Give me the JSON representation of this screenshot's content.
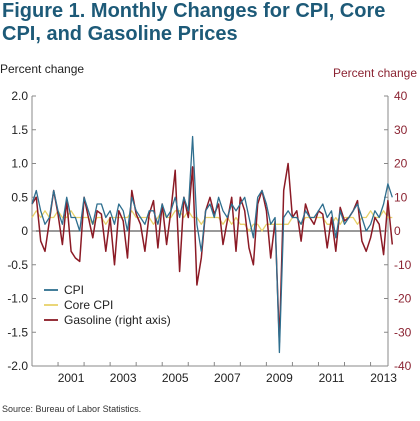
{
  "colors": {
    "cpi": "#2f6f8f",
    "core": "#e8d26a",
    "gasoline": "#8b1a25",
    "title": "#1d5a78",
    "right_axis": "#8b2332"
  },
  "source": "Source: Bureau of Labor Statistics.",
  "chart_data": {
    "type": "line",
    "title": "Figure 1. Monthly Changes for CPI, Core CPI, and Gasoline Prices",
    "ylabel": "Percent change",
    "y2label": "Percent change",
    "ylim": [
      -2.0,
      2.0
    ],
    "y2lim": [
      -40,
      40
    ],
    "yticks": [
      "2.0",
      "1.5",
      "1.0",
      "0.5",
      "0",
      "-0.5",
      "-1.0",
      "-1.5",
      "-2.0"
    ],
    "y2ticks": [
      "40",
      "30",
      "20",
      "10",
      "0",
      "-10",
      "-20",
      "-30",
      "-40"
    ],
    "xlim": [
      2000,
      2013.67
    ],
    "xticks": [
      "2001",
      "2003",
      "2005",
      "2007",
      "2009",
      "2011",
      "2013"
    ],
    "grid": false,
    "legend_position": "bottom-left",
    "series": [
      {
        "name": "CPI",
        "axis": "left",
        "x_start": 2000.0,
        "x_step": 0.16667,
        "values": [
          0.4,
          0.6,
          0.3,
          0.1,
          0.2,
          0.6,
          0.3,
          0.1,
          0.5,
          0.2,
          0.2,
          0.0,
          0.5,
          0.3,
          0.1,
          0.4,
          0.4,
          0.2,
          0.3,
          0.1,
          0.4,
          0.3,
          0.0,
          0.5,
          0.3,
          0.2,
          0.1,
          0.3,
          0.3,
          0.1,
          0.4,
          0.2,
          0.3,
          0.5,
          0.2,
          0.5,
          0.3,
          1.4,
          0.1,
          -0.3,
          0.3,
          0.4,
          0.2,
          0.5,
          0.3,
          0.2,
          0.4,
          0.3,
          0.4,
          0.5,
          0.2,
          -0.1,
          0.5,
          0.6,
          0.4,
          0.1,
          0.2,
          -1.8,
          0.2,
          0.3,
          0.2,
          0.2,
          0.1,
          0.3,
          0.2,
          0.2,
          0.3,
          0.4,
          0.2,
          0.3,
          -0.1,
          0.3,
          0.1,
          0.2,
          0.3,
          0.4,
          0.2,
          0.0,
          0.1,
          0.3,
          0.2,
          0.4,
          0.7,
          0.5
        ]
      },
      {
        "name": "Core CPI",
        "axis": "left",
        "x_start": 2000.0,
        "x_step": 0.16667,
        "values": [
          0.2,
          0.3,
          0.2,
          0.3,
          0.2,
          0.2,
          0.3,
          0.2,
          0.2,
          0.3,
          0.2,
          0.2,
          0.2,
          0.2,
          0.1,
          0.2,
          0.2,
          0.1,
          0.2,
          0.2,
          0.2,
          0.2,
          0.2,
          0.3,
          0.2,
          0.2,
          0.2,
          0.2,
          0.1,
          0.2,
          0.3,
          0.2,
          0.2,
          0.3,
          0.3,
          0.2,
          0.3,
          0.2,
          0.2,
          0.1,
          0.2,
          0.2,
          0.2,
          0.2,
          0.1,
          0.2,
          0.1,
          0.2,
          0.1,
          0.1,
          0.0,
          0.1,
          0.1,
          0.0,
          0.1,
          0.1,
          0.1,
          0.1,
          0.1,
          0.1,
          0.2,
          0.2,
          0.1,
          0.2,
          0.2,
          0.2,
          0.2,
          0.2,
          0.1,
          0.1,
          0.2,
          0.1,
          0.2,
          0.2,
          0.2,
          0.1,
          0.2,
          0.2,
          0.3,
          0.2,
          0.2,
          0.3,
          0.2,
          0.2
        ]
      },
      {
        "name": "Gasoline (right axis)",
        "axis": "right",
        "x_start": 2000.0,
        "x_step": 0.16667,
        "values": [
          8,
          10,
          -3,
          -6,
          3,
          12,
          5,
          -4,
          9,
          -6,
          -8,
          -9,
          10,
          4,
          -2,
          6,
          5,
          -6,
          4,
          -10,
          6,
          3,
          -8,
          12,
          5,
          2,
          -6,
          5,
          9,
          -5,
          8,
          -4,
          6,
          18,
          -12,
          10,
          4,
          19,
          -16,
          -8,
          6,
          10,
          5,
          8,
          -4,
          3,
          10,
          -6,
          10,
          6,
          -5,
          -10,
          8,
          12,
          6,
          -8,
          3,
          -33,
          12,
          20,
          4,
          6,
          -3,
          8,
          4,
          2,
          6,
          5,
          -5,
          4,
          -6,
          7,
          3,
          4,
          6,
          9,
          -3,
          -6,
          -2,
          4,
          2,
          -7,
          9,
          -4
        ]
      }
    ]
  }
}
